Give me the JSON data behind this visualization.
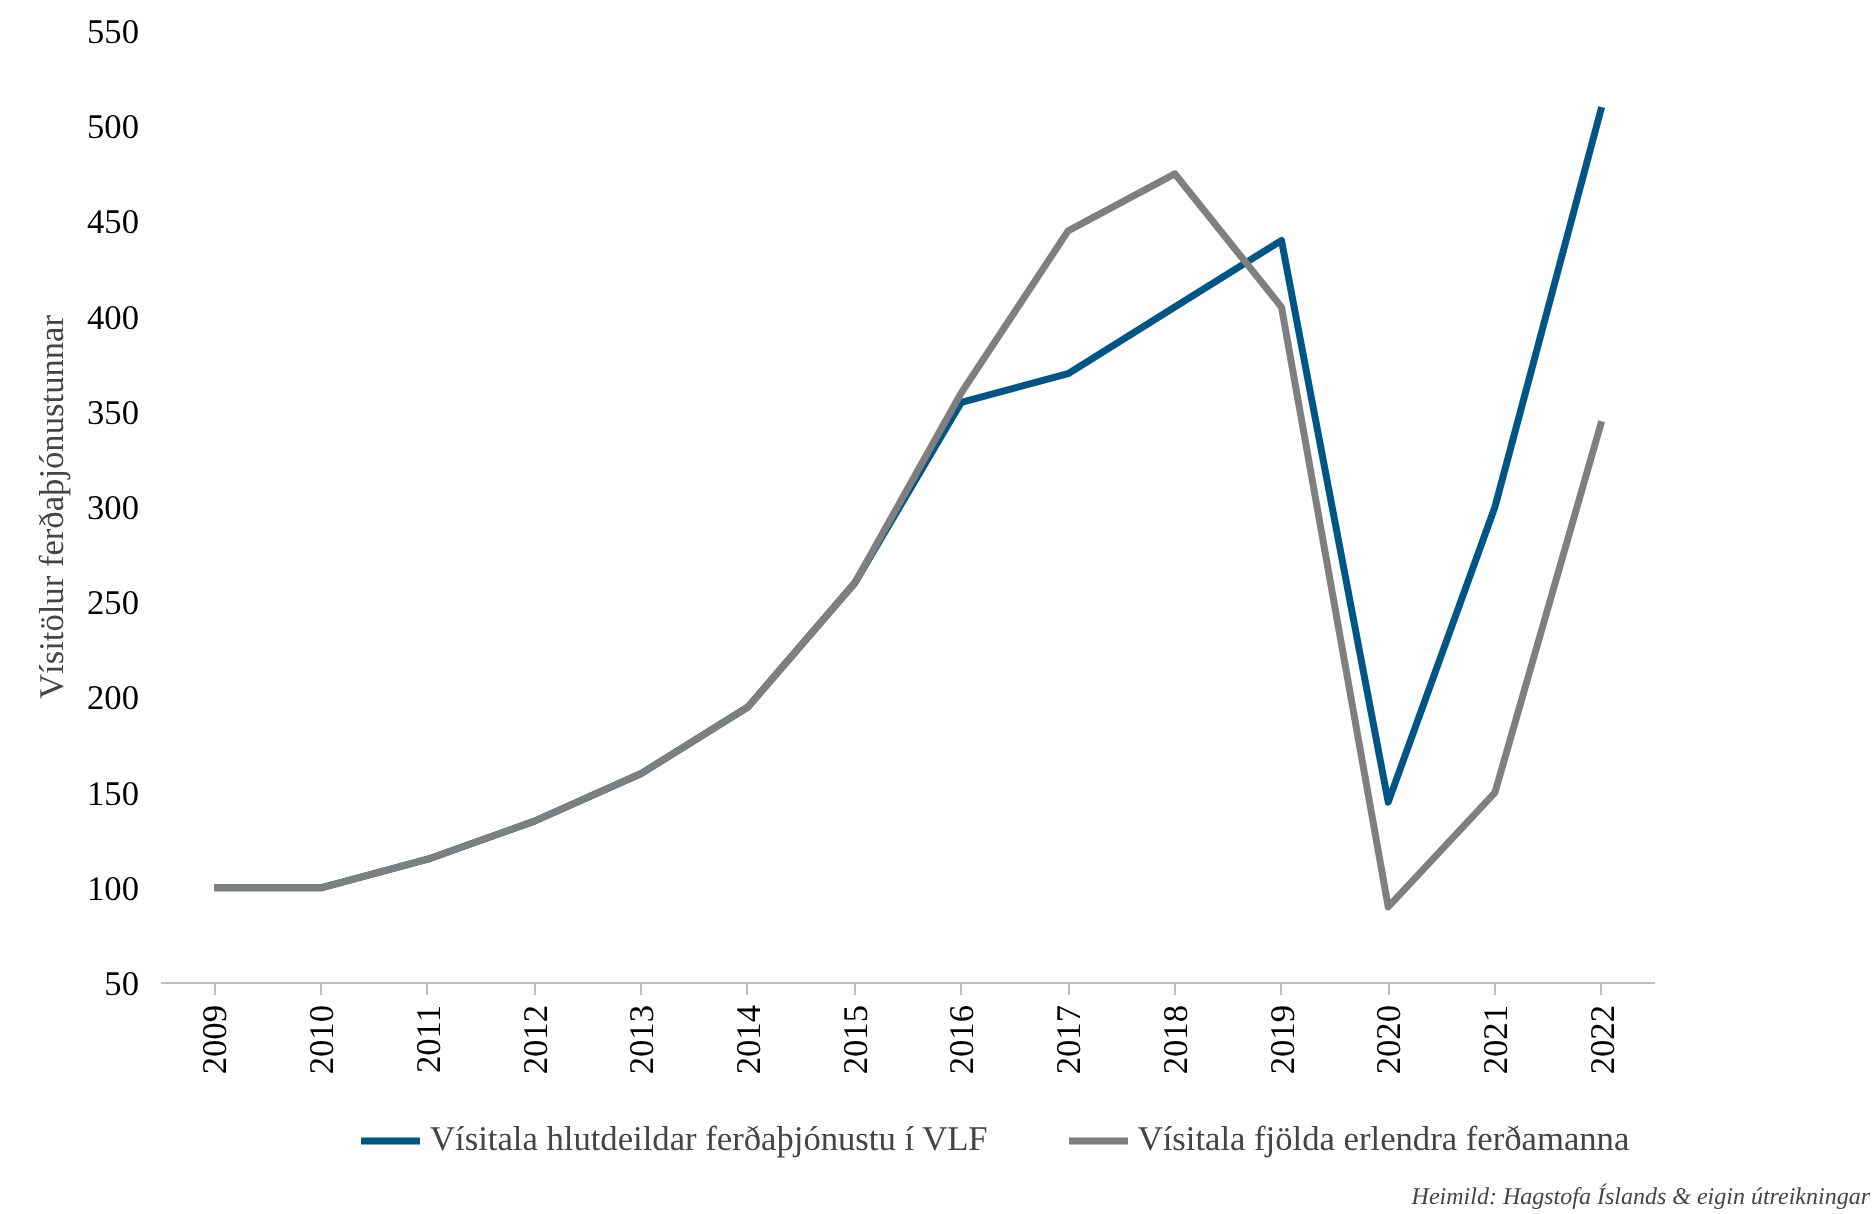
{
  "chart_data": {
    "type": "line",
    "ylabel": "Vísitölur ferðaþjónustunnar",
    "categories": [
      "2009",
      "2010",
      "2011",
      "2012",
      "2013",
      "2014",
      "2015",
      "2016",
      "2017",
      "2018",
      "2019",
      "2020",
      "2021",
      "2022"
    ],
    "series": [
      {
        "name": "Vísitala hlutdeildar ferðaþjónustu í VLF",
        "color": "#005587",
        "values": [
          100,
          100,
          115,
          135,
          160,
          195,
          260,
          355,
          370,
          405,
          440,
          145,
          300,
          510
        ]
      },
      {
        "name": "Vísitala fjölda erlendra ferðamanna",
        "color": "#7f7f7f",
        "values": [
          100,
          100,
          115,
          135,
          160,
          195,
          260,
          360,
          445,
          475,
          405,
          90,
          150,
          345
        ]
      }
    ],
    "ylim": [
      50,
      550
    ],
    "yticks": [
      50,
      100,
      150,
      200,
      250,
      300,
      350,
      400,
      450,
      500,
      550
    ],
    "grid": false,
    "legend": "bottom",
    "marker": "none",
    "line_style": "solid",
    "annotations": [
      "Heimild: Hagstofa Íslands & eigin útreikningar"
    ]
  }
}
